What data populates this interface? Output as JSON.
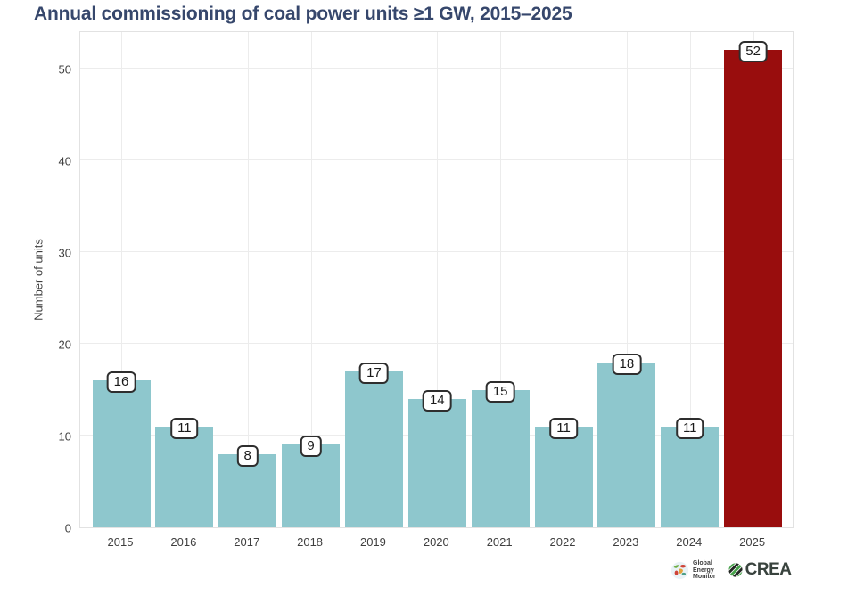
{
  "header": {
    "title": "Annual commissioning of coal power units ≥1 GW, 2015–2025",
    "title_color": "#36476c"
  },
  "chart_data": {
    "type": "bar",
    "title": "Annual commissioning of coal power units ≥1 GW, 2015–2025",
    "categories": [
      "2015",
      "2016",
      "2017",
      "2018",
      "2019",
      "2020",
      "2021",
      "2022",
      "2023",
      "2024",
      "2025"
    ],
    "values": [
      16,
      11,
      8,
      9,
      17,
      14,
      15,
      11,
      18,
      11,
      52
    ],
    "xlabel": "",
    "ylabel": "Number of units",
    "yticks": [
      0,
      10,
      20,
      30,
      40,
      50
    ],
    "ylim": [
      0,
      54.2
    ],
    "grid": true,
    "legend": "none",
    "data_labels_shown": true,
    "bar_color_default": "#8ec7cd",
    "bar_color_highlight": "#990d0d",
    "highlight_index": 10,
    "gridline_color": "#ececec",
    "axis_text_color": "#3f3f3f"
  },
  "branding": {
    "gem": {
      "name": "Global Energy Monitor",
      "lines": [
        "Global",
        "Energy",
        "Monitor"
      ]
    },
    "crea": {
      "label": "CREA"
    }
  }
}
